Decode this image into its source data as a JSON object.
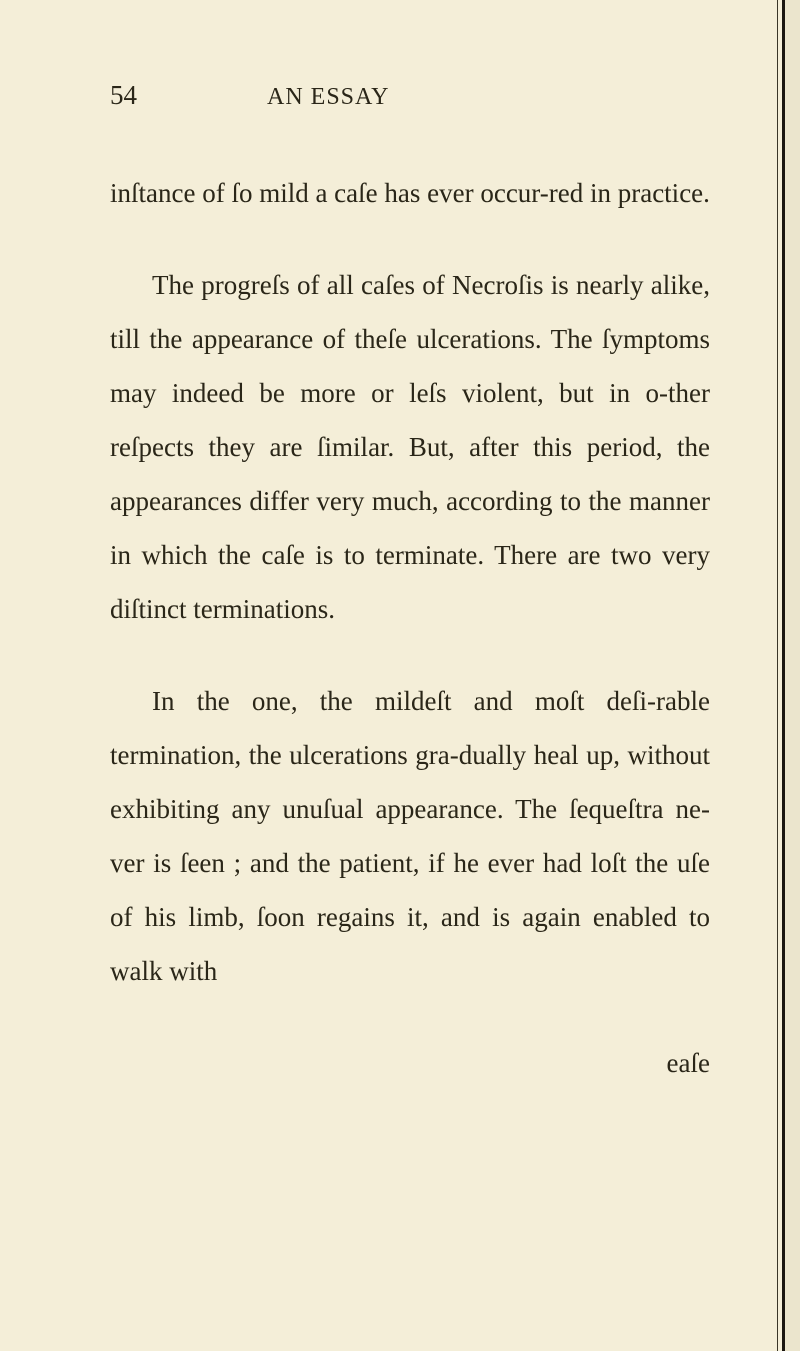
{
  "page": {
    "number": "54",
    "sectionTitle": "AN ESSAY",
    "background_color": "#f4eed8",
    "text_color": "#2a2618",
    "font_family": "Georgia, serif",
    "body_fontsize": 27,
    "line_height": 2.0,
    "paragraphs": [
      {
        "text": "inſtance of ſo mild a caſe has ever occur-red in practice.",
        "indent": false
      },
      {
        "text": "The progreſs of all caſes of Necroſis is nearly alike, till the appearance of theſe ulcerations. The ſymptoms may indeed be more or leſs violent, but in o-ther reſpects they are ſimilar. But, after this period, the appearances differ very much, according to the manner in which the caſe is to terminate. There are two very diſtinct terminations.",
        "indent": true
      },
      {
        "text": "In the one, the mildeſt and moſt deſi-rable termination, the ulcerations gra-dually heal up, without exhibiting any unuſual appearance. The ſequeſtra ne-ver is ſeen ; and the patient, if he ever had loſt the uſe of his limb, ſoon regains it, and is again enabled to walk with",
        "indent": true
      }
    ],
    "catchword": "eaſe"
  }
}
